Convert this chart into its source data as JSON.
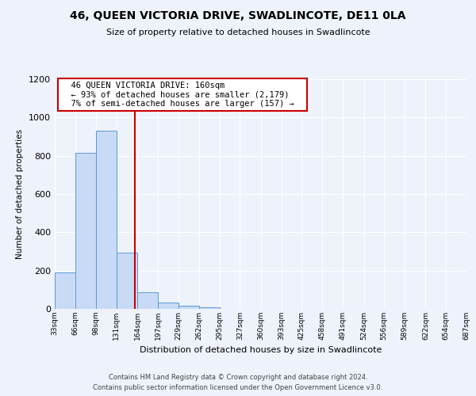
{
  "title_main": "46, QUEEN VICTORIA DRIVE, SWADLINCOTE, DE11 0LA",
  "title_sub": "Size of property relative to detached houses in Swadlincote",
  "xlabel": "Distribution of detached houses by size in Swadlincote",
  "ylabel": "Number of detached properties",
  "footer_line1": "Contains HM Land Registry data © Crown copyright and database right 2024.",
  "footer_line2": "Contains public sector information licensed under the Open Government Licence v3.0.",
  "annotation_line1": "46 QUEEN VICTORIA DRIVE: 160sqm",
  "annotation_line2": "← 93% of detached houses are smaller (2,179)",
  "annotation_line3": "7% of semi-detached houses are larger (157) →",
  "bar_edges": [
    33,
    66,
    98,
    131,
    164,
    197,
    229,
    262,
    295,
    327,
    360,
    393,
    425,
    458,
    491,
    524,
    556,
    589,
    622,
    654,
    687
  ],
  "bar_heights": [
    190,
    815,
    930,
    295,
    85,
    35,
    15,
    10,
    0,
    0,
    0,
    0,
    0,
    0,
    0,
    0,
    0,
    0,
    0,
    0
  ],
  "bar_color": "#c8daf5",
  "bar_edgecolor": "#5b9bd5",
  "vline_x": 160,
  "vline_color": "#cc0000",
  "ylim": [
    0,
    1200
  ],
  "yticks": [
    0,
    200,
    400,
    600,
    800,
    1000,
    1200
  ],
  "background_color": "#eef2fb",
  "plot_bg": "#eef2fb",
  "grid_color": "#ffffff",
  "annotation_box_edgecolor": "#cc0000",
  "annotation_box_facecolor": "#ffffff"
}
